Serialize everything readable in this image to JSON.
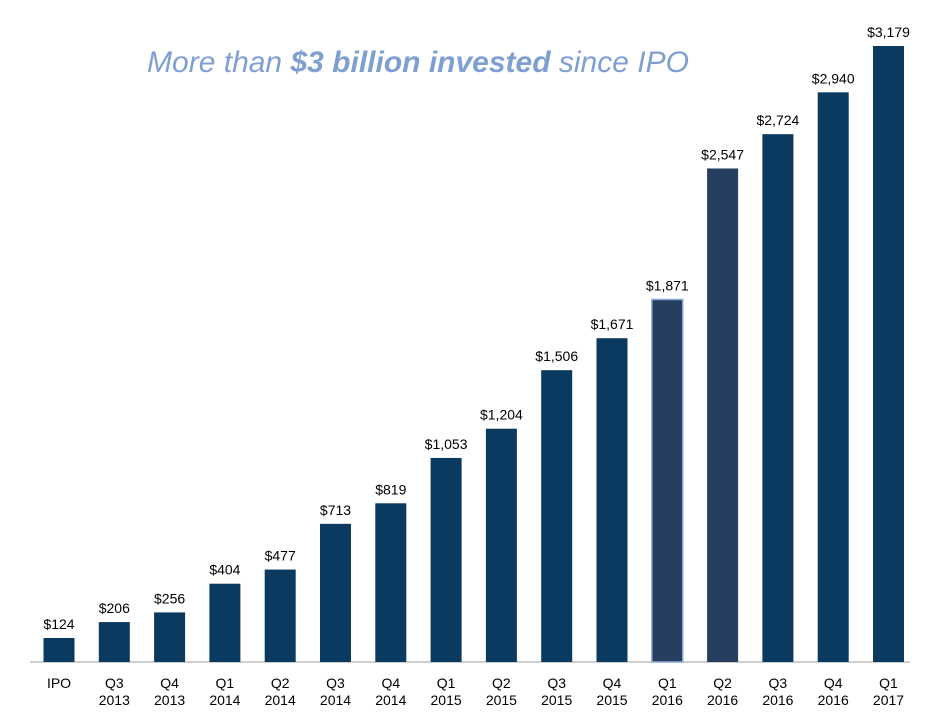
{
  "chart_data": {
    "type": "bar",
    "title": [
      "More than",
      "$3 billion invested",
      "since IPO"
    ],
    "categories": [
      "IPO",
      "Q3 2013",
      "Q4 2013",
      "Q1 2014",
      "Q2 2014",
      "Q3 2014",
      "Q4 2014",
      "Q1 2015",
      "Q2 2015",
      "Q3 2015",
      "Q4 2015",
      "Q1 2016",
      "Q2 2016",
      "Q3 2016",
      "Q4 2016",
      "Q1 2017"
    ],
    "values": [
      124,
      206,
      256,
      404,
      477,
      713,
      819,
      1053,
      1204,
      1506,
      1671,
      1871,
      2547,
      2724,
      2940,
      3179
    ],
    "value_labels": [
      "$124",
      "$206",
      "$256",
      "$404",
      "$477",
      "$713",
      "$819",
      "$1,053",
      "$1,204",
      "$1,506",
      "$1,671",
      "$1,871",
      "$2,547",
      "$2,724",
      "$2,940",
      "$3,179"
    ],
    "colors": [
      "#0b3a60",
      "#0b3a60",
      "#0b3a60",
      "#0b3a60",
      "#0b3a60",
      "#0b3a60",
      "#0b3a60",
      "#0b3a60",
      "#0b3a60",
      "#0b3a60",
      "#0b3a60",
      "#263f61",
      "#263f61",
      "#0b3a60",
      "#0b3a60",
      "#0b3a60"
    ]
  }
}
